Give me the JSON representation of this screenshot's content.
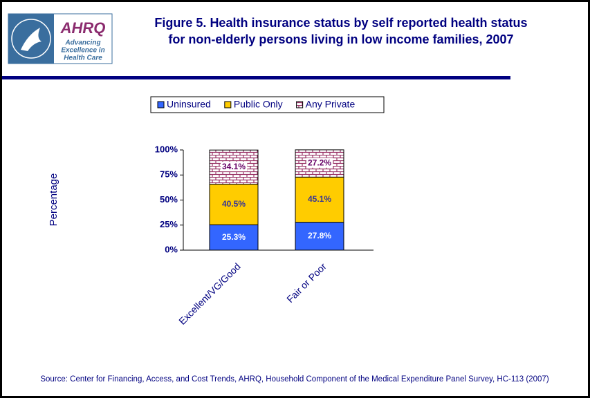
{
  "logo": {
    "name": "AHRQ",
    "tagline": [
      "Advancing",
      "Excellence in",
      "Health Care"
    ]
  },
  "chart_data": {
    "type": "stacked-bar",
    "title": [
      "Figure 5. Health insurance status by self reported health status",
      "for non-elderly persons living in low income families, 2007"
    ],
    "y_label": "Percentage",
    "categories": [
      "Excellent/VG/Good",
      "Fair or Poor"
    ],
    "series": [
      {
        "name": "Uninsured",
        "color": "#3366ff",
        "values": [
          25.3,
          27.8
        ],
        "value_labels": [
          "25.3%",
          "27.8%"
        ],
        "label_color": "#ffffff"
      },
      {
        "name": "Public Only",
        "color": "#ffcc00",
        "values": [
          40.5,
          45.1
        ],
        "value_labels": [
          "40.5%",
          "45.1%"
        ],
        "label_color": "#333399"
      },
      {
        "name": "Any Private",
        "color": "#993366",
        "pattern": "brick",
        "values": [
          34.1,
          27.2
        ],
        "value_labels": [
          "34.1%",
          "27.2%"
        ],
        "label_color": "#660066"
      }
    ],
    "ylim": [
      0,
      100
    ],
    "yticks": [
      {
        "value": 0,
        "label": "0%"
      },
      {
        "value": 25,
        "label": "25%"
      },
      {
        "value": 50,
        "label": "50%"
      },
      {
        "value": 75,
        "label": "75%"
      },
      {
        "value": 100,
        "label": "100%"
      }
    ],
    "legend": "top",
    "source": "Source: Center for Financing, Access, and Cost Trends, AHRQ, Household Component of the Medical Expenditure Panel Survey, HC-113 (2007)"
  }
}
